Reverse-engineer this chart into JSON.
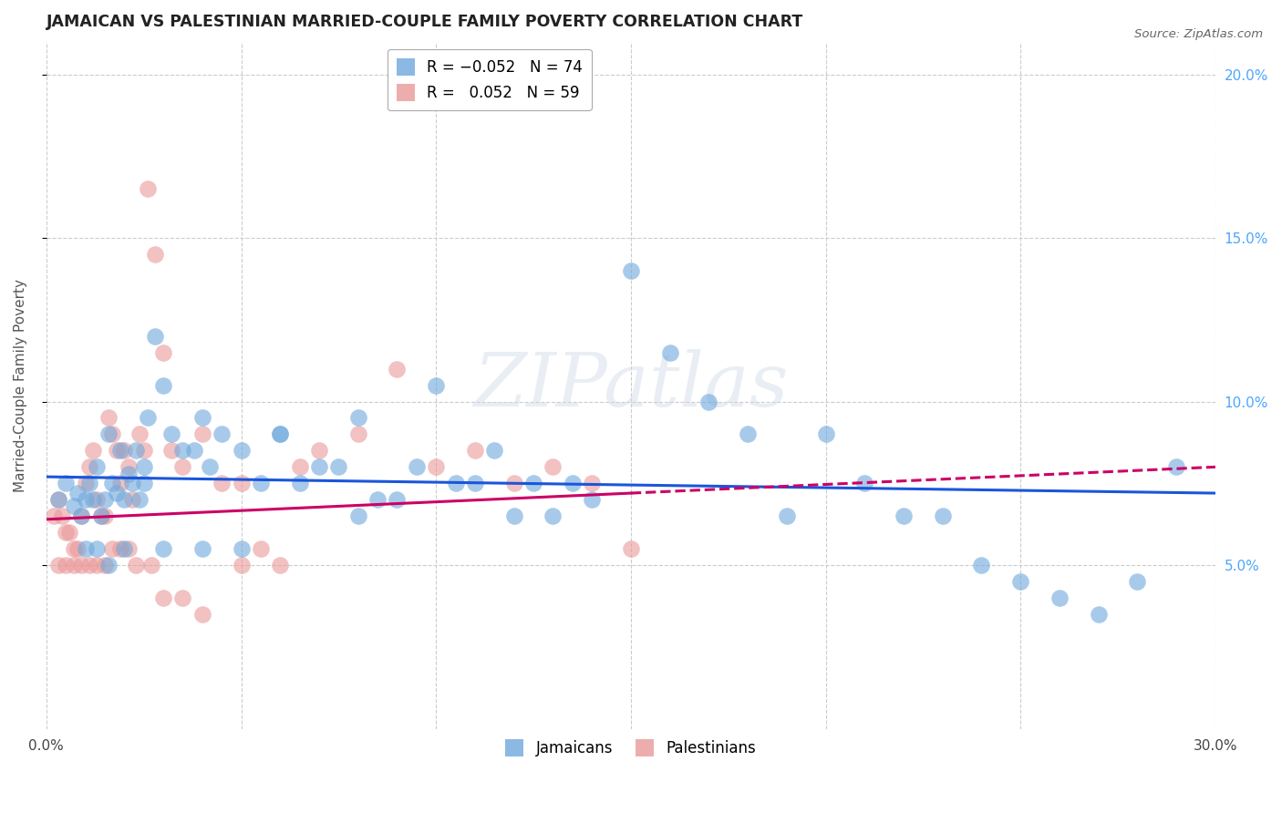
{
  "title": "JAMAICAN VS PALESTINIAN MARRIED-COUPLE FAMILY POVERTY CORRELATION CHART",
  "source": "Source: ZipAtlas.com",
  "ylabel": "Married-Couple Family Poverty",
  "watermark": "ZIPatlas",
  "xlim": [
    0.0,
    30.0
  ],
  "ylim": [
    0.0,
    21.0
  ],
  "jamaicans_R": -0.052,
  "jamaicans_N": 74,
  "palestinians_R": 0.052,
  "palestinians_N": 59,
  "background_color": "#ffffff",
  "blue_color": "#6fa8dc",
  "pink_color": "#ea9999",
  "blue_line_color": "#1a56db",
  "pink_line_color": "#cc0066",
  "title_color": "#222222",
  "source_color": "#666666",
  "axis_label_color": "#555555",
  "right_ytick_color": "#4da6ff",
  "grid_color": "#cccccc",
  "jamaicans_x": [
    0.3,
    0.5,
    0.7,
    0.8,
    0.9,
    1.0,
    1.1,
    1.2,
    1.3,
    1.4,
    1.5,
    1.6,
    1.7,
    1.8,
    1.9,
    2.0,
    2.1,
    2.2,
    2.3,
    2.4,
    2.5,
    2.6,
    2.8,
    3.0,
    3.2,
    3.5,
    3.8,
    4.0,
    4.2,
    4.5,
    5.0,
    5.5,
    6.0,
    6.5,
    7.0,
    7.5,
    8.0,
    8.5,
    9.0,
    9.5,
    10.0,
    10.5,
    11.0,
    11.5,
    12.0,
    12.5,
    13.0,
    13.5,
    14.0,
    15.0,
    16.0,
    17.0,
    18.0,
    19.0,
    20.0,
    21.0,
    22.0,
    23.0,
    24.0,
    25.0,
    26.0,
    27.0,
    28.0,
    29.0,
    1.0,
    1.3,
    1.6,
    2.0,
    2.5,
    3.0,
    4.0,
    5.0,
    6.0,
    8.0
  ],
  "jamaicans_y": [
    7.0,
    7.5,
    6.8,
    7.2,
    6.5,
    7.0,
    7.5,
    7.0,
    8.0,
    6.5,
    7.0,
    9.0,
    7.5,
    7.2,
    8.5,
    7.0,
    7.8,
    7.5,
    8.5,
    7.0,
    8.0,
    9.5,
    12.0,
    10.5,
    9.0,
    8.5,
    8.5,
    9.5,
    8.0,
    9.0,
    8.5,
    7.5,
    9.0,
    7.5,
    8.0,
    8.0,
    9.5,
    7.0,
    7.0,
    8.0,
    10.5,
    7.5,
    7.5,
    8.5,
    6.5,
    7.5,
    6.5,
    7.5,
    7.0,
    14.0,
    11.5,
    10.0,
    9.0,
    6.5,
    9.0,
    7.5,
    6.5,
    6.5,
    5.0,
    4.5,
    4.0,
    3.5,
    4.5,
    8.0,
    5.5,
    5.5,
    5.0,
    5.5,
    7.5,
    5.5,
    5.5,
    5.5,
    9.0,
    6.5
  ],
  "palestinians_x": [
    0.2,
    0.3,
    0.4,
    0.5,
    0.6,
    0.7,
    0.8,
    0.9,
    1.0,
    1.1,
    1.2,
    1.3,
    1.4,
    1.5,
    1.6,
    1.7,
    1.8,
    1.9,
    2.0,
    2.1,
    2.2,
    2.4,
    2.5,
    2.6,
    2.8,
    3.0,
    3.2,
    3.5,
    4.0,
    4.5,
    5.0,
    5.5,
    6.5,
    7.0,
    8.0,
    9.0,
    10.0,
    11.0,
    12.0,
    13.0,
    14.0,
    15.0,
    0.3,
    0.5,
    0.7,
    0.9,
    1.1,
    1.3,
    1.5,
    1.7,
    1.9,
    2.1,
    2.3,
    2.7,
    3.0,
    3.5,
    4.0,
    5.0,
    6.0
  ],
  "palestinians_y": [
    6.5,
    7.0,
    6.5,
    6.0,
    6.0,
    5.5,
    5.5,
    6.5,
    7.5,
    8.0,
    8.5,
    7.0,
    6.5,
    6.5,
    9.5,
    9.0,
    8.5,
    7.5,
    8.5,
    8.0,
    7.0,
    9.0,
    8.5,
    16.5,
    14.5,
    11.5,
    8.5,
    8.0,
    9.0,
    7.5,
    7.5,
    5.5,
    8.0,
    8.5,
    9.0,
    11.0,
    8.0,
    8.5,
    7.5,
    8.0,
    7.5,
    5.5,
    5.0,
    5.0,
    5.0,
    5.0,
    5.0,
    5.0,
    5.0,
    5.5,
    5.5,
    5.5,
    5.0,
    5.0,
    4.0,
    4.0,
    3.5,
    5.0,
    5.0
  ]
}
